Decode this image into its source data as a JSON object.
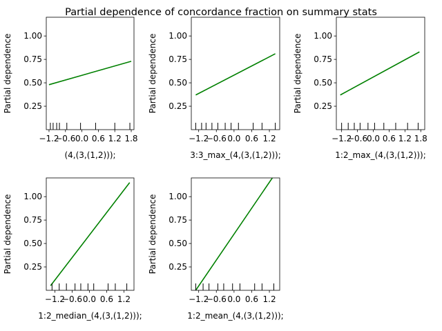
{
  "figure": {
    "title": "Partial dependence of concordance fraction on summary stats"
  },
  "chart_data": [
    {
      "type": "line",
      "xlabel": "(4,(3,(1,2)));",
      "ylabel": "Partial dependence",
      "xticks": [
        -1.2,
        -0.6,
        0.0,
        0.6,
        1.2,
        1.8
      ],
      "xtick_labels": [
        "−1.2",
        "−0.6",
        "0.0",
        "0.6",
        "1.2",
        "1.8"
      ],
      "xlim": [
        -1.3,
        1.9
      ],
      "yticks": [
        0.25,
        0.5,
        0.75,
        1.0
      ],
      "ytick_labels": [
        "0.25",
        "0.50",
        "0.75",
        "1.00"
      ],
      "ylim": [
        0.0,
        1.2
      ],
      "line_color": "#008000",
      "series": [
        {
          "x": [
            -1.2,
            1.8
          ],
          "y": [
            0.48,
            0.73
          ]
        }
      ],
      "rug": [
        -1.15,
        -1.05,
        -0.92,
        -0.82,
        -0.55,
        -0.05,
        0.5,
        1.2,
        1.75
      ]
    },
    {
      "type": "line",
      "xlabel": "3:3_max_(4,(3,(1,2)));",
      "ylabel": "Partial dependence",
      "xticks": [
        -1.2,
        -0.6,
        0.0,
        0.6,
        1.2
      ],
      "xtick_labels": [
        "−1.2",
        "−0.6",
        "0.0",
        "0.6",
        "1.2"
      ],
      "xlim": [
        -1.45,
        1.55
      ],
      "yticks": [
        0.25,
        0.5,
        0.75,
        1.0
      ],
      "ytick_labels": [
        "0.25",
        "0.50",
        "0.75",
        "1.00"
      ],
      "ylim": [
        0.0,
        1.2
      ],
      "line_color": "#008000",
      "series": [
        {
          "x": [
            -1.3,
            1.4
          ],
          "y": [
            0.37,
            0.81
          ]
        }
      ],
      "rug": [
        -1.3,
        -1.1,
        -0.95,
        -0.75,
        -0.55,
        -0.3,
        -0.1,
        0.15,
        0.65,
        0.95,
        1.4
      ]
    },
    {
      "type": "line",
      "xlabel": "1:2_max_(4,(3,(1,2)));",
      "ylabel": "Partial dependence",
      "xticks": [
        -1.2,
        -0.6,
        0.0,
        0.6,
        1.2,
        1.8
      ],
      "xtick_labels": [
        "−1.2",
        "−0.6",
        "0.0",
        "0.6",
        "1.2",
        "1.8"
      ],
      "xlim": [
        -1.4,
        1.95
      ],
      "yticks": [
        0.25,
        0.5,
        0.75,
        1.0
      ],
      "ytick_labels": [
        "0.25",
        "0.50",
        "0.75",
        "1.00"
      ],
      "ylim": [
        0.0,
        1.2
      ],
      "line_color": "#008000",
      "series": [
        {
          "x": [
            -1.25,
            1.75
          ],
          "y": [
            0.37,
            0.83
          ]
        }
      ],
      "rug": [
        -1.2,
        -0.95,
        -0.72,
        -0.5,
        -0.2,
        0.05,
        0.4,
        0.85,
        1.3,
        1.7
      ]
    },
    {
      "type": "line",
      "xlabel": "1:2_median_(4,(3,(1,2)));",
      "ylabel": "Partial dependence",
      "xticks": [
        -1.2,
        -0.6,
        0.0,
        0.6,
        1.2
      ],
      "xtick_labels": [
        "−1.2",
        "−0.6",
        "0.0",
        "0.6",
        "1.2"
      ],
      "xlim": [
        -1.5,
        1.55
      ],
      "yticks": [
        0.25,
        0.5,
        0.75,
        1.0
      ],
      "ytick_labels": [
        "0.25",
        "0.50",
        "0.75",
        "1.00"
      ],
      "ylim": [
        0.0,
        1.2
      ],
      "line_color": "#008000",
      "series": [
        {
          "x": [
            -1.35,
            1.4
          ],
          "y": [
            0.05,
            1.15
          ]
        }
      ],
      "rug": [
        -1.3,
        -1.05,
        -0.8,
        -0.5,
        -0.3,
        -0.05,
        0.15,
        0.65,
        0.9,
        1.3
      ]
    },
    {
      "type": "line",
      "xlabel": "1:2_mean_(4,(3,(1,2)));",
      "ylabel": "Partial dependence",
      "xticks": [
        -1.2,
        -0.6,
        0.0,
        0.6,
        1.2
      ],
      "xtick_labels": [
        "−1.2",
        "−0.6",
        "0.0",
        "0.6",
        "1.2"
      ],
      "xlim": [
        -1.45,
        1.55
      ],
      "yticks": [
        0.25,
        0.5,
        0.75,
        1.0
      ],
      "ytick_labels": [
        "0.25",
        "0.50",
        "0.75",
        "1.00"
      ],
      "ylim": [
        0.0,
        1.2
      ],
      "line_color": "#008000",
      "series": [
        {
          "x": [
            -1.3,
            1.3
          ],
          "y": [
            0.0,
            1.2
          ]
        }
      ],
      "rug": [
        -1.3,
        -1.05,
        -0.85,
        -0.55,
        -0.35,
        -0.05,
        0.2,
        0.7,
        0.95,
        1.35
      ]
    }
  ]
}
